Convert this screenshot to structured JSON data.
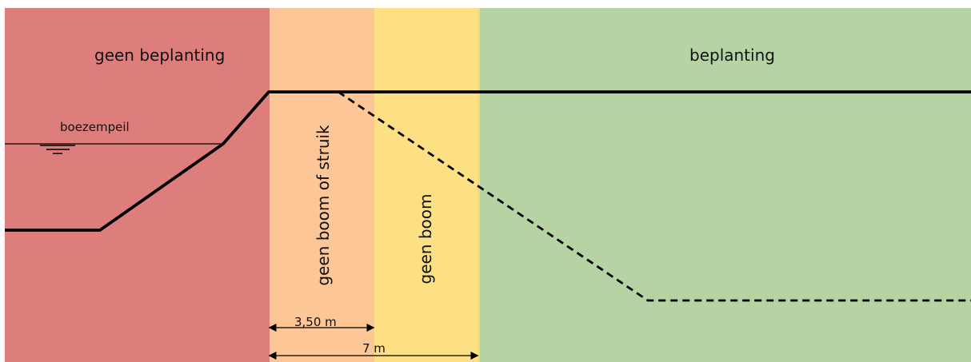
{
  "colors": {
    "no_planting": "#dd7e7d",
    "no_tree_or_shrub": "#fcc696",
    "no_tree": "#fde083",
    "planting": "#b6d3a4",
    "zone_border": "#f2dc73",
    "line": "#000000"
  },
  "labels": {
    "no_planting": "geen beplanting",
    "planting": "beplanting",
    "water_level": "boezempeil",
    "no_tree_or_shrub": "geen boom of struik",
    "no_tree": "geen boom"
  },
  "dimensions": {
    "inner": "3,50 m",
    "outer": "7 m"
  },
  "icons": {
    "water_level": "water-level-icon",
    "dimension_arrow": "arrow-icon"
  }
}
